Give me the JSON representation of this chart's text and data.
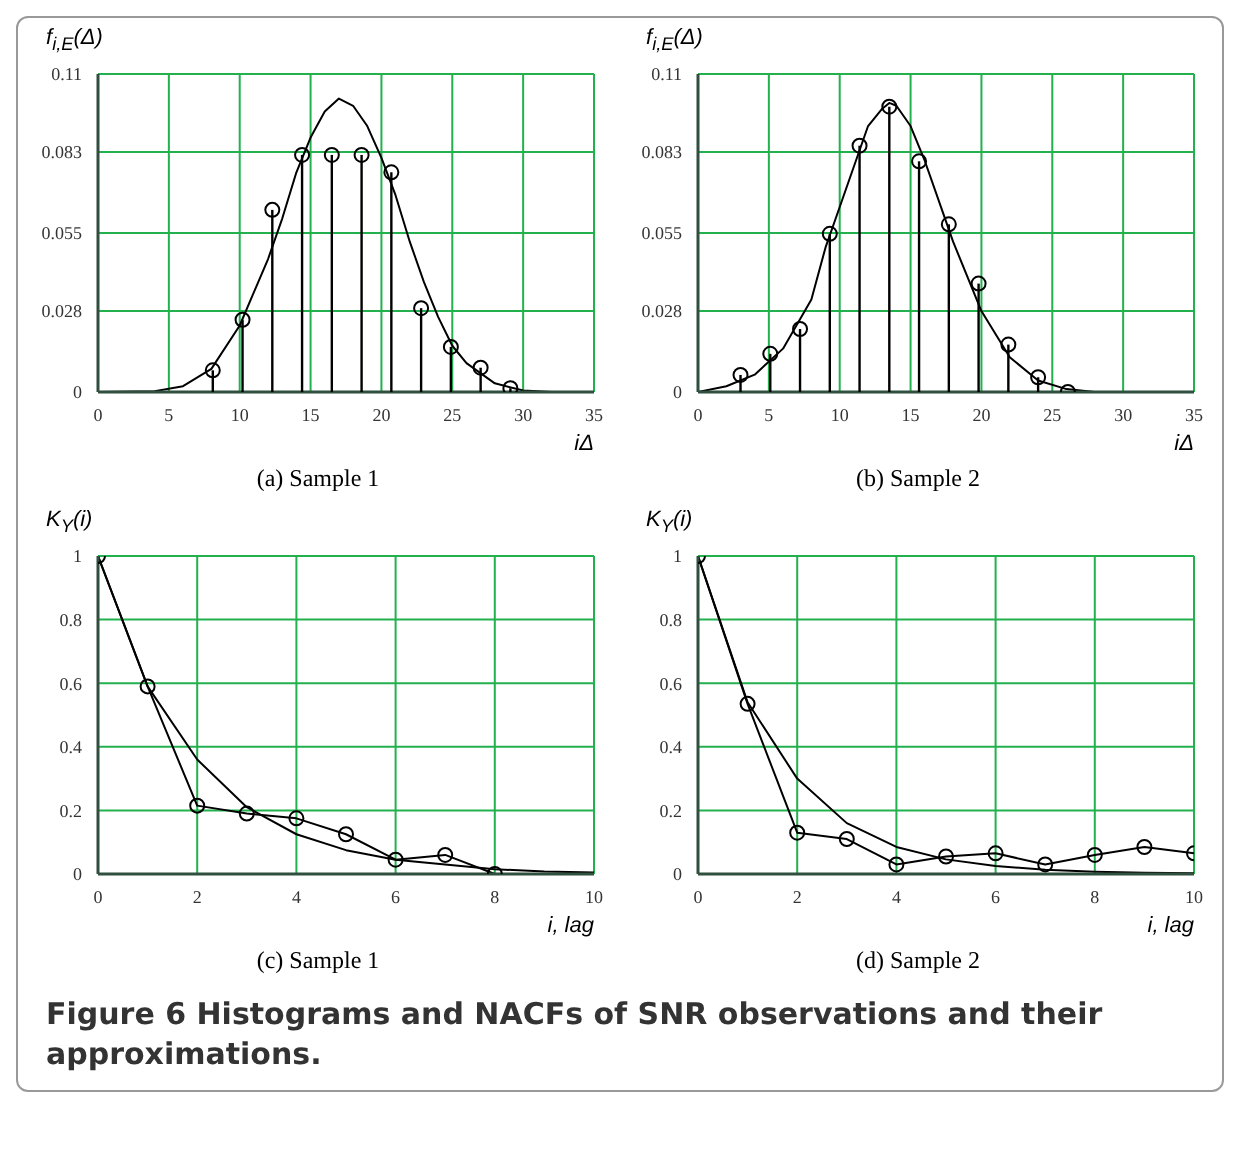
{
  "chart_data": [
    {
      "type": "lollipop",
      "title": "(a) Sample 1",
      "xlabel": "iΔ",
      "ylabel": "f$_{i,E}$(Δ)",
      "xlim": [
        0,
        35
      ],
      "xticks": [
        0,
        5,
        10,
        15,
        20,
        25,
        30,
        35
      ],
      "ylim": [
        0,
        0.11
      ],
      "yticks": [
        0,
        0.028,
        0.055,
        0.083,
        0.11
      ],
      "grid": true,
      "annotations": [
        "Figure 6 Histograms and NACFs of SNR observations and their approximations."
      ],
      "series": [
        {
          "color": "#000000",
          "marker": "circle",
          "x": [
            8.1,
            10.2,
            12.3,
            14.4,
            16.5,
            18.6,
            20.7,
            22.8,
            24.9,
            27.0,
            29.1
          ],
          "values": [
            0.0075,
            0.025,
            0.063,
            0.082,
            0.082,
            0.082,
            0.076,
            0.029,
            0.0156,
            0.0084,
            0.0013
          ]
        },
        {
          "type": "line",
          "color": "#000000",
          "marker": "none",
          "x": [
            0,
            4,
            6,
            8,
            10,
            12,
            13,
            14,
            15,
            16,
            17,
            18,
            19,
            20,
            21,
            22,
            23,
            24,
            25,
            26,
            28,
            30,
            32,
            35
          ],
          "values": [
            0,
            0.0003,
            0.002,
            0.008,
            0.023,
            0.046,
            0.06,
            0.076,
            0.088,
            0.097,
            0.1015,
            0.099,
            0.092,
            0.081,
            0.068,
            0.052,
            0.038,
            0.026,
            0.016,
            0.01,
            0.003,
            0.0005,
            0,
            0
          ]
        }
      ]
    },
    {
      "type": "lollipop",
      "title": "(b) Sample 2",
      "xlabel": "iΔ",
      "ylabel": "f$_{i,E}$(Δ)",
      "xlim": [
        0,
        35
      ],
      "xticks": [
        0,
        5,
        10,
        15,
        20,
        25,
        30,
        35
      ],
      "ylim": [
        0,
        0.11
      ],
      "yticks": [
        0,
        0.028,
        0.055,
        0.083,
        0.11
      ],
      "grid": true,
      "series": [
        {
          "color": "#000000",
          "marker": "circle",
          "x": [
            3.0,
            5.1,
            7.2,
            9.3,
            11.4,
            13.5,
            15.6,
            17.7,
            19.8,
            21.9,
            24.0,
            26.1
          ],
          "values": [
            0.0059,
            0.0132,
            0.0218,
            0.0547,
            0.0852,
            0.0987,
            0.0798,
            0.058,
            0.0375,
            0.0164,
            0.0051,
            0
          ]
        },
        {
          "type": "line",
          "color": "#000000",
          "marker": "none",
          "x": [
            0,
            2,
            4,
            6,
            8,
            9,
            10,
            11,
            12,
            13,
            13.5,
            14,
            15,
            16,
            17,
            18,
            19,
            20,
            22,
            24,
            26,
            28,
            35
          ],
          "values": [
            0,
            0.002,
            0.006,
            0.015,
            0.032,
            0.05,
            0.064,
            0.078,
            0.092,
            0.098,
            0.1,
            0.099,
            0.092,
            0.08,
            0.066,
            0.052,
            0.04,
            0.028,
            0.012,
            0.004,
            0.001,
            0,
            0
          ]
        }
      ]
    },
    {
      "type": "line",
      "title": "(c) Sample 1",
      "xlabel": "i, lag",
      "ylabel": "K$_{Y}$(i)",
      "xlim": [
        0,
        10
      ],
      "xticks": [
        0,
        2,
        4,
        6,
        8,
        10
      ],
      "ylim": [
        0,
        1
      ],
      "yticks": [
        0,
        0.2,
        0.4,
        0.6,
        0.8,
        1
      ],
      "grid": true,
      "series": [
        {
          "color": "#000000",
          "marker": "circle",
          "x": [
            0,
            1,
            2,
            3,
            4,
            5,
            6,
            7,
            8
          ],
          "values": [
            1,
            0.59,
            0.215,
            0.19,
            0.175,
            0.125,
            0.045,
            0.06,
            0
          ]
        },
        {
          "color": "#000000",
          "marker": "none",
          "x": [
            0,
            1,
            2,
            3,
            4,
            5,
            6,
            7,
            8,
            9,
            10
          ],
          "values": [
            1,
            0.59,
            0.36,
            0.21,
            0.125,
            0.075,
            0.045,
            0.03,
            0.015,
            0.008,
            0.005
          ]
        }
      ]
    },
    {
      "type": "line",
      "title": "(d) Sample 2",
      "xlabel": "i, lag",
      "ylabel": "K$_{Y}$(i)",
      "xlim": [
        0,
        10
      ],
      "xticks": [
        0,
        2,
        4,
        6,
        8,
        10
      ],
      "ylim": [
        0,
        1
      ],
      "yticks": [
        0,
        0.2,
        0.4,
        0.6,
        0.8,
        1
      ],
      "grid": true,
      "series": [
        {
          "color": "#000000",
          "marker": "circle",
          "x": [
            0,
            1,
            2,
            3,
            4,
            5,
            6,
            7,
            8,
            9,
            10
          ],
          "values": [
            1,
            0.535,
            0.13,
            0.11,
            0.03,
            0.055,
            0.065,
            0.03,
            0.06,
            0.085,
            0.065
          ]
        },
        {
          "color": "#000000",
          "marker": "none",
          "x": [
            0,
            1,
            2,
            3,
            4,
            5,
            6,
            7,
            8,
            9,
            10
          ],
          "values": [
            1,
            0.54,
            0.3,
            0.16,
            0.085,
            0.046,
            0.025,
            0.013,
            0.007,
            0.004,
            0.002
          ]
        }
      ]
    }
  ]
}
